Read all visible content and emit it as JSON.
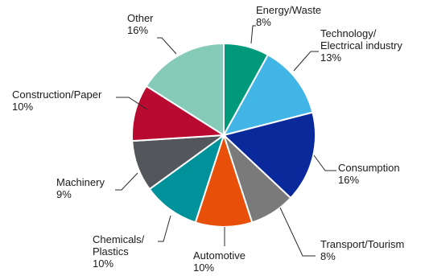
{
  "chart_data": {
    "type": "pie",
    "title": "",
    "slices": [
      {
        "label": [
          "Energy/Waste"
        ],
        "value_label": "8%",
        "value": 8,
        "color": "#00997a"
      },
      {
        "label": [
          "Technology/",
          "Electrical industry"
        ],
        "value_label": "13%",
        "value": 13,
        "color": "#41b6e6"
      },
      {
        "label": [
          "Consumption"
        ],
        "value_label": "16%",
        "value": 16,
        "color": "#0a2a9c"
      },
      {
        "label": [
          "Transport/Tourism"
        ],
        "value_label": "8%",
        "value": 8,
        "color": "#7a7a7a"
      },
      {
        "label": [
          "Automotive"
        ],
        "value_label": "10%",
        "value": 10,
        "color": "#e8500a"
      },
      {
        "label": [
          "Chemicals/",
          "Plastics"
        ],
        "value_label": "10%",
        "value": 10,
        "color": "#00929a"
      },
      {
        "label": [
          "Machinery"
        ],
        "value_label": "9%",
        "value": 9,
        "color": "#53575c"
      },
      {
        "label": [
          "Construction/Paper"
        ],
        "value_label": "10%",
        "value": 10,
        "color": "#b90a32"
      },
      {
        "label": [
          "Other"
        ],
        "value_label": "16%",
        "value": 16,
        "color": "#85cbb8"
      }
    ]
  }
}
